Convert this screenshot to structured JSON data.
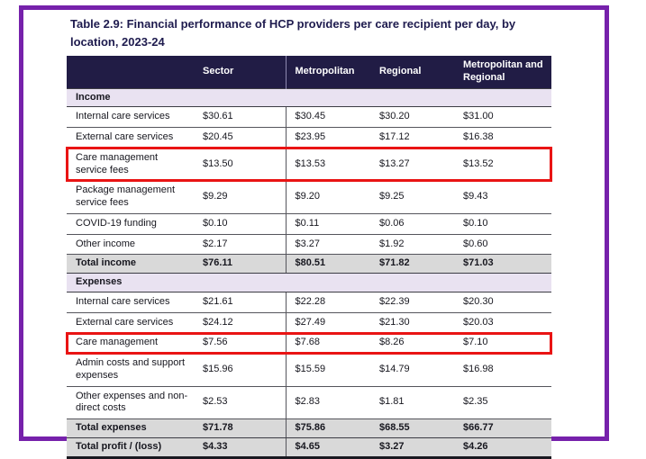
{
  "title": {
    "text": "Table 2.9: Financial performance of HCP providers per care recipient per day, by location, 2023-24"
  },
  "colors": {
    "frame_border": "#7621ab",
    "header_bg": "#211c45",
    "section_bg": "#e9e2f1",
    "total_bg": "#d9d9d9",
    "highlight_box": "#e91414"
  },
  "table": {
    "columns": [
      "",
      "Sector",
      "Metropolitan",
      "Regional",
      "Metropolitan and Regional"
    ],
    "sections": [
      {
        "label": "Income",
        "rows": [
          {
            "label": "Internal care services",
            "values": [
              "$30.61",
              "$30.45",
              "$30.20",
              "$31.00"
            ],
            "highlight": false
          },
          {
            "label": "External care services",
            "values": [
              "$20.45",
              "$23.95",
              "$17.12",
              "$16.38"
            ],
            "highlight": false
          },
          {
            "label": "Care management service fees",
            "values": [
              "$13.50",
              "$13.53",
              "$13.27",
              "$13.52"
            ],
            "highlight": true
          },
          {
            "label": "Package management service fees",
            "values": [
              "$9.29",
              "$9.20",
              "$9.25",
              "$9.43"
            ],
            "highlight": false
          },
          {
            "label": "COVID-19 funding",
            "values": [
              "$0.10",
              "$0.11",
              "$0.06",
              "$0.10"
            ],
            "highlight": false
          },
          {
            "label": "Other income",
            "values": [
              "$2.17",
              "$3.27",
              "$1.92",
              "$0.60"
            ],
            "highlight": false
          }
        ],
        "total": {
          "label": "Total income",
          "values": [
            "$76.11",
            "$80.51",
            "$71.82",
            "$71.03"
          ]
        }
      },
      {
        "label": "Expenses",
        "rows": [
          {
            "label": "Internal care services",
            "values": [
              "$21.61",
              "$22.28",
              "$22.39",
              "$20.30"
            ],
            "highlight": false
          },
          {
            "label": "External care services",
            "values": [
              "$24.12",
              "$27.49",
              "$21.30",
              "$20.03"
            ],
            "highlight": false
          },
          {
            "label": "Care management",
            "values": [
              "$7.56",
              "$7.68",
              "$8.26",
              "$7.10"
            ],
            "highlight": true
          },
          {
            "label": "Admin costs and support expenses",
            "values": [
              "$15.96",
              "$15.59",
              "$14.79",
              "$16.98"
            ],
            "highlight": false
          },
          {
            "label": "Other expenses and non-direct costs",
            "values": [
              "$2.53",
              "$2.83",
              "$1.81",
              "$2.35"
            ],
            "highlight": false
          }
        ],
        "total": {
          "label": "Total expenses",
          "values": [
            "$71.78",
            "$75.86",
            "$68.55",
            "$66.77"
          ]
        }
      }
    ],
    "grand_total": {
      "label": "Total profit / (loss)",
      "values": [
        "$4.33",
        "$4.65",
        "$3.27",
        "$4.26"
      ]
    }
  }
}
